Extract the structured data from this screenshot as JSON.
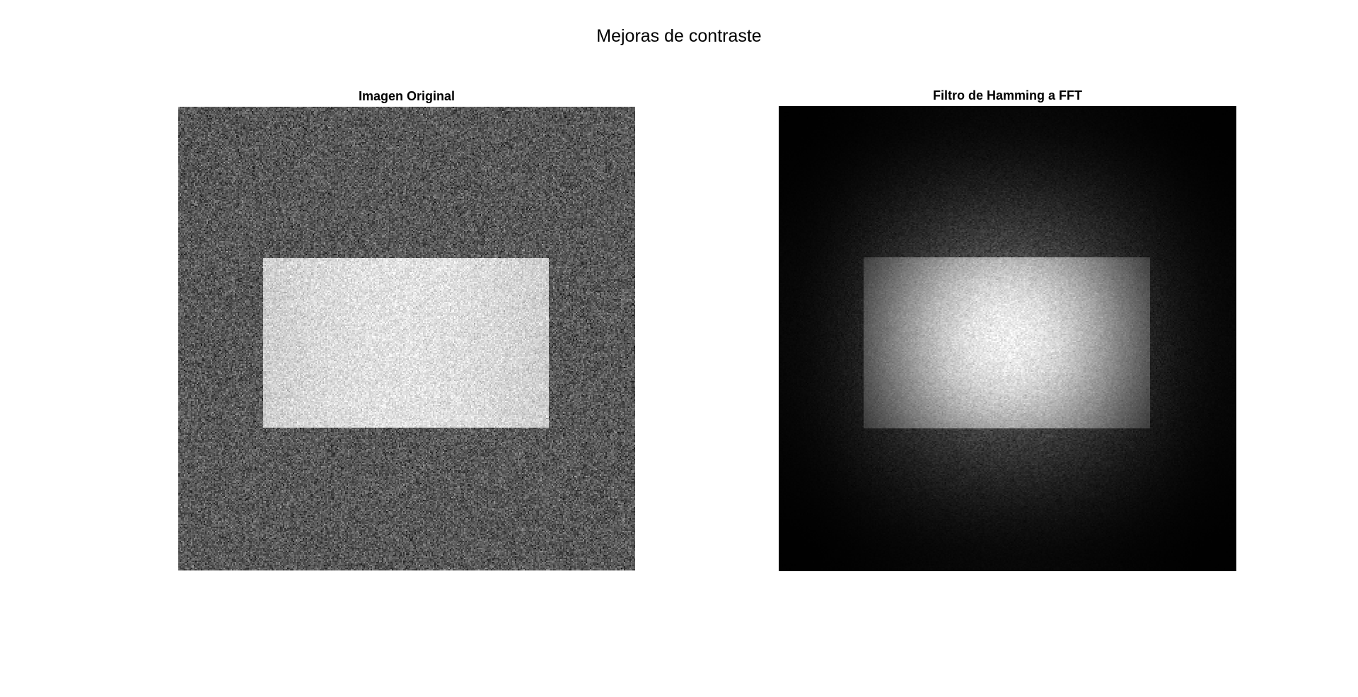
{
  "figure": {
    "title": "Mejoras de contraste"
  },
  "panels": [
    {
      "title": "Imagen Original",
      "image": "noisy-rectangle-phantom"
    },
    {
      "title": "Filtro de Hamming a FFT",
      "image": "hamming-filtered-rectangle-phantom"
    }
  ]
}
